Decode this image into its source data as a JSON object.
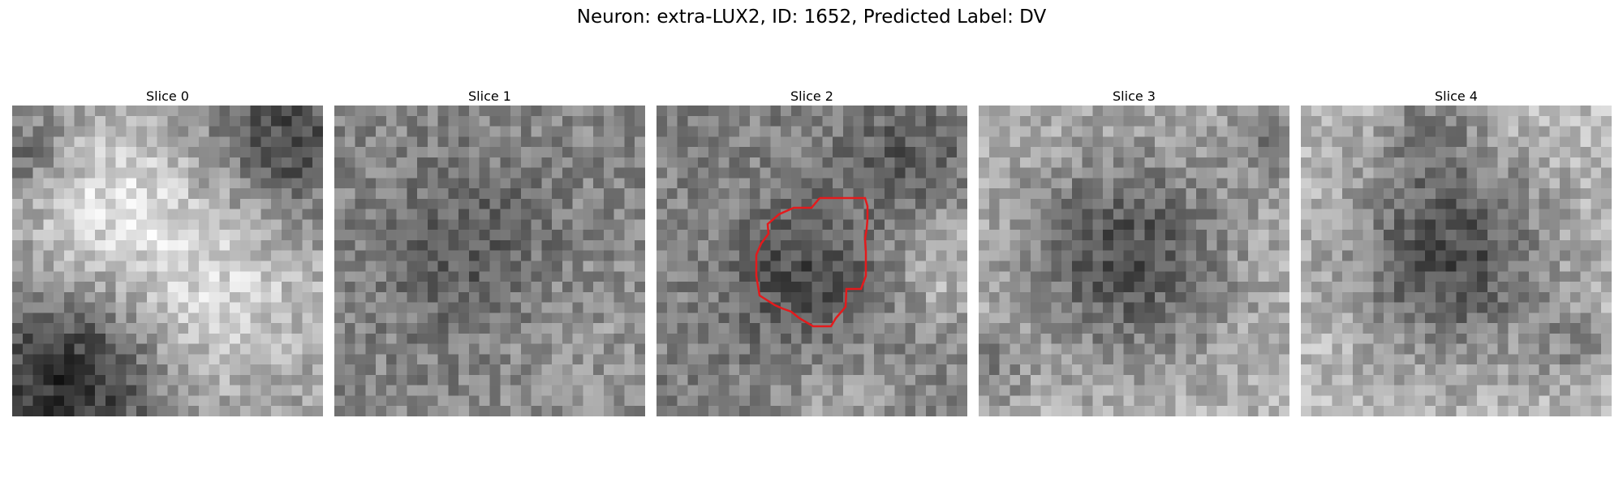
{
  "figure": {
    "title": "Neuron: extra-LUX2, ID: 1652, Predicted Label: DV"
  },
  "slices": [
    {
      "title": "Slice 0"
    },
    {
      "title": "Slice 1"
    },
    {
      "title": "Slice 2"
    },
    {
      "title": "Slice 3"
    },
    {
      "title": "Slice 4"
    }
  ],
  "colors": {
    "contour": "#e41a1c",
    "colormap": "grayscale"
  }
}
